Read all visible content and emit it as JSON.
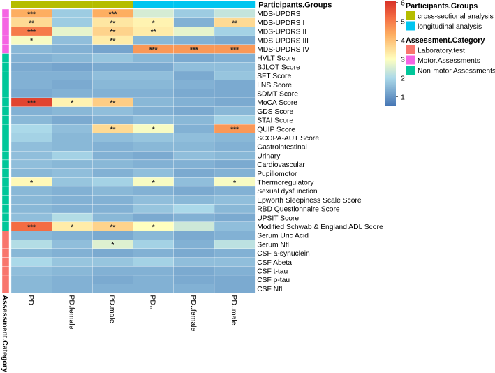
{
  "chart_data": {
    "type": "heatmap",
    "title": "",
    "columns": [
      "PD",
      "PD.female",
      "PD.male",
      "PD..",
      "PD..female",
      "PD..male"
    ],
    "column_groups": [
      "cross-sectional analysis",
      "cross-sectional analysis",
      "cross-sectional analysis",
      "longitudinal analysis",
      "longitudinal analysis",
      "longitudinal analysis"
    ],
    "column_annotation_title": "Participants.Groups",
    "row_annotation_title": "Assessment.Category",
    "rows": [
      {
        "label": "MDS-UPDRS",
        "category": "Motor.Assessments",
        "values": [
          4.3,
          1.8,
          4.3,
          2.5,
          1.8,
          2.3
        ],
        "stars": [
          "***",
          "",
          "***",
          "",
          "",
          ""
        ]
      },
      {
        "label": "MDS-UPDRS  I",
        "category": "Motor.Assessments",
        "values": [
          3.6,
          1.8,
          3.4,
          3.2,
          1.4,
          3.6
        ],
        "stars": [
          "**",
          "",
          "**",
          "*",
          "",
          "**"
        ]
      },
      {
        "label": "MDS-UPDRS  II",
        "category": "Motor.Assessments",
        "values": [
          5.0,
          2.7,
          3.7,
          3.3,
          2.7,
          1.9
        ],
        "stars": [
          "***",
          "",
          "**",
          "**",
          "",
          ""
        ]
      },
      {
        "label": "MDS-UPDRS  III",
        "category": "Motor.Assessments",
        "values": [
          2.9,
          1.6,
          3.3,
          1.5,
          1.4,
          1.3
        ],
        "stars": [
          "*",
          "",
          "**",
          "",
          "",
          ""
        ]
      },
      {
        "label": "MDS-UPDRS IV",
        "category": "Motor.Assessments",
        "values": [
          1.5,
          1.4,
          1.2,
          4.6,
          4.6,
          4.6
        ],
        "stars": [
          "",
          "",
          "",
          "***",
          "***",
          "***"
        ]
      },
      {
        "label": "HVLT Score",
        "category": "Non-motor.Assessments",
        "values": [
          1.4,
          1.5,
          1.7,
          1.5,
          1.3,
          1.4
        ],
        "stars": [
          "",
          "",
          "",
          "",
          "",
          ""
        ]
      },
      {
        "label": "BJLOT Score",
        "category": "Non-motor.Assessments",
        "values": [
          1.3,
          1.2,
          1.3,
          1.3,
          1.6,
          1.6
        ],
        "stars": [
          "",
          "",
          "",
          "",
          "",
          ""
        ]
      },
      {
        "label": "SFT Score",
        "category": "Non-motor.Assessments",
        "values": [
          1.4,
          1.4,
          1.6,
          1.6,
          1.3,
          1.7
        ],
        "stars": [
          "",
          "",
          "",
          "",
          "",
          ""
        ]
      },
      {
        "label": "LNS Score",
        "category": "Non-motor.Assessments",
        "values": [
          1.4,
          1.3,
          1.5,
          1.5,
          1.4,
          1.3
        ],
        "stars": [
          "",
          "",
          "",
          "",
          "",
          ""
        ]
      },
      {
        "label": "SDMT Score",
        "category": "Non-motor.Assessments",
        "values": [
          1.3,
          1.4,
          1.4,
          1.4,
          1.3,
          1.3
        ],
        "stars": [
          "",
          "",
          "",
          "",
          "",
          ""
        ]
      },
      {
        "label": "MoCA Score",
        "category": "Non-motor.Assessments",
        "values": [
          5.8,
          3.2,
          3.8,
          1.5,
          1.4,
          1.3
        ],
        "stars": [
          "***",
          "*",
          "**",
          "",
          "",
          ""
        ]
      },
      {
        "label": "GDS Score",
        "category": "Non-motor.Assessments",
        "values": [
          1.4,
          1.5,
          1.6,
          1.4,
          1.3,
          1.5
        ],
        "stars": [
          "",
          "",
          "",
          "",
          "",
          ""
        ]
      },
      {
        "label": "STAI Score",
        "category": "Non-motor.Assessments",
        "values": [
          1.5,
          1.3,
          1.4,
          1.6,
          1.5,
          1.9
        ],
        "stars": [
          "",
          "",
          "",
          "",
          "",
          ""
        ]
      },
      {
        "label": "QUIP Score",
        "category": "Non-motor.Assessments",
        "values": [
          2.0,
          1.6,
          3.6,
          2.9,
          1.4,
          4.6
        ],
        "stars": [
          "",
          "",
          "**",
          "*",
          "",
          "***"
        ]
      },
      {
        "label": "SCOPA-AUT Score",
        "category": "Non-motor.Assessments",
        "values": [
          1.9,
          1.5,
          1.6,
          1.7,
          1.6,
          1.5
        ],
        "stars": [
          "",
          "",
          "",
          "",
          "",
          ""
        ]
      },
      {
        "label": "Gastrointestinal",
        "category": "Non-motor.Assessments",
        "values": [
          1.6,
          1.5,
          1.4,
          1.5,
          1.5,
          1.4
        ],
        "stars": [
          "",
          "",
          "",
          "",
          "",
          ""
        ]
      },
      {
        "label": "Urinary",
        "category": "Non-motor.Assessments",
        "values": [
          1.6,
          1.9,
          1.4,
          1.3,
          1.6,
          1.5
        ],
        "stars": [
          "",
          "",
          "",
          "",
          "",
          ""
        ]
      },
      {
        "label": "Cardiovascular",
        "category": "Non-motor.Assessments",
        "values": [
          1.6,
          1.5,
          1.5,
          1.4,
          1.4,
          1.3
        ],
        "stars": [
          "",
          "",
          "",
          "",
          "",
          ""
        ]
      },
      {
        "label": "Pupillomotor",
        "category": "Non-motor.Assessments",
        "values": [
          1.5,
          1.6,
          1.4,
          1.6,
          1.3,
          1.4
        ],
        "stars": [
          "",
          "",
          "",
          "",
          "",
          ""
        ]
      },
      {
        "label": "Thermoregulatory",
        "category": "Non-motor.Assessments",
        "values": [
          3.1,
          1.7,
          1.9,
          2.9,
          1.6,
          2.9
        ],
        "stars": [
          "*",
          "",
          "",
          "*",
          "",
          "*"
        ]
      },
      {
        "label": "Sexual dysfunction",
        "category": "Non-motor.Assessments",
        "values": [
          1.5,
          1.4,
          1.5,
          1.4,
          1.3,
          1.4
        ],
        "stars": [
          "",
          "",
          "",
          "",
          "",
          ""
        ]
      },
      {
        "label": "Epworth Sleepiness Scale Score",
        "category": "Non-motor.Assessments",
        "values": [
          1.5,
          1.4,
          1.4,
          1.6,
          1.5,
          1.6
        ],
        "stars": [
          "",
          "",
          "",
          "",
          "",
          ""
        ]
      },
      {
        "label": "RBD Questionnaire Score",
        "category": "Non-motor.Assessments",
        "values": [
          1.5,
          1.4,
          1.4,
          1.7,
          2.0,
          1.5
        ],
        "stars": [
          "",
          "",
          "",
          "",
          "",
          ""
        ]
      },
      {
        "label": "UPSIT Score",
        "category": "Non-motor.Assessments",
        "values": [
          1.6,
          2.1,
          1.5,
          1.3,
          1.4,
          1.3
        ],
        "stars": [
          "",
          "",
          "",
          "",
          "",
          ""
        ]
      },
      {
        "label": "Modified Schwab & England ADL Score",
        "category": "Non-motor.Assessments",
        "values": [
          5.2,
          3.3,
          3.7,
          3.0,
          2.4,
          1.6
        ],
        "stars": [
          "***",
          "*",
          "**",
          "*",
          "",
          ""
        ]
      },
      {
        "label": "Serum Uric Acid",
        "category": "Laboratory.test",
        "values": [
          1.5,
          1.4,
          1.3,
          1.5,
          1.3,
          1.4
        ],
        "stars": [
          "",
          "",
          "",
          "",
          "",
          ""
        ]
      },
      {
        "label": "Serum Nfl",
        "category": "Laboratory.test",
        "values": [
          2.1,
          1.6,
          2.6,
          1.9,
          1.4,
          2.2
        ],
        "stars": [
          "",
          "",
          "*",
          "",
          "",
          ""
        ]
      },
      {
        "label": "CSF a-synuclein",
        "category": "Laboratory.test",
        "values": [
          1.5,
          1.4,
          1.3,
          1.4,
          1.3,
          1.4
        ],
        "stars": [
          "",
          "",
          "",
          "",
          "",
          ""
        ]
      },
      {
        "label": "CSF Abeta",
        "category": "Laboratory.test",
        "values": [
          2.0,
          1.7,
          1.7,
          1.9,
          1.6,
          1.6
        ],
        "stars": [
          "",
          "",
          "",
          "",
          "",
          ""
        ]
      },
      {
        "label": "CSF t-tau",
        "category": "Laboratory.test",
        "values": [
          1.6,
          1.5,
          1.4,
          1.4,
          1.3,
          1.4
        ],
        "stars": [
          "",
          "",
          "",
          "",
          "",
          ""
        ]
      },
      {
        "label": "CSF p-tau",
        "category": "Laboratory.test",
        "values": [
          1.5,
          1.4,
          1.3,
          1.4,
          1.3,
          1.3
        ],
        "stars": [
          "",
          "",
          "",
          "",
          "",
          ""
        ]
      },
      {
        "label": "CSF Nfl",
        "category": "Laboratory.test",
        "values": [
          1.5,
          1.4,
          1.4,
          1.4,
          1.4,
          1.3
        ],
        "stars": [
          "",
          "",
          "",
          "",
          "",
          ""
        ]
      }
    ],
    "color_scale": {
      "min": 0.5,
      "max": 6.1,
      "ticks": [
        1,
        2,
        3,
        4,
        5,
        6
      ],
      "stops": [
        {
          "value": 0.5,
          "color": "#4575b4"
        },
        {
          "value": 2.0,
          "color": "#abd9e9"
        },
        {
          "value": 3.0,
          "color": "#ffffbf"
        },
        {
          "value": 4.3,
          "color": "#fdae61"
        },
        {
          "value": 5.2,
          "color": "#f46d43"
        },
        {
          "value": 6.1,
          "color": "#d73027"
        }
      ]
    },
    "legends": [
      {
        "title": "Participants.Groups",
        "items": [
          {
            "label": "cross-sectional analysis",
            "color": "#b5bd00"
          },
          {
            "label": "longitudinal analysis",
            "color": "#00c5f0"
          }
        ]
      },
      {
        "title": "Assessment.Category",
        "items": [
          {
            "label": "Laboratory.test",
            "color": "#f8766d"
          },
          {
            "label": "Motor.Assessments",
            "color": "#f564e3"
          },
          {
            "label": "Non-motor.Assessments",
            "color": "#00c79a"
          }
        ]
      }
    ],
    "category_colors": {
      "Laboratory.test": "#f8766d",
      "Motor.Assessments": "#f564e3",
      "Non-motor.Assessments": "#00c79a"
    },
    "group_colors": {
      "cross-sectional analysis": "#b5bd00",
      "longitudinal analysis": "#00c5f0"
    }
  }
}
